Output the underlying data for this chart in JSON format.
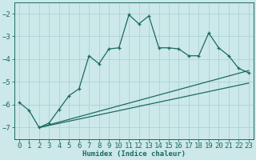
{
  "xlabel": "Humidex (Indice chaleur)",
  "background_color": "#cce8e8",
  "line_color": "#1a6b60",
  "xlim": [
    -0.5,
    23.5
  ],
  "ylim": [
    -7.5,
    -1.5
  ],
  "yticks": [
    -7,
    -6,
    -5,
    -4,
    -3,
    -2
  ],
  "xticks": [
    0,
    1,
    2,
    3,
    4,
    5,
    6,
    7,
    8,
    9,
    10,
    11,
    12,
    13,
    14,
    15,
    16,
    17,
    18,
    19,
    20,
    21,
    22,
    23
  ],
  "line1_x": [
    0,
    1,
    2,
    3,
    4,
    5,
    6,
    7,
    8,
    9,
    10,
    11,
    12,
    13,
    14,
    15,
    16,
    17,
    18,
    19,
    20,
    21,
    22,
    23
  ],
  "line1_y": [
    -5.9,
    -6.25,
    -7.0,
    -6.8,
    -6.2,
    -5.6,
    -5.3,
    -3.85,
    -4.2,
    -3.55,
    -3.5,
    -2.05,
    -2.45,
    -2.1,
    -3.5,
    -3.5,
    -3.55,
    -3.85,
    -3.85,
    -2.85,
    -3.5,
    -3.85,
    -4.4,
    -4.6
  ],
  "line2_x": [
    2,
    23
  ],
  "line2_y": [
    -7.0,
    -4.5
  ],
  "line3_x": [
    2,
    23
  ],
  "line3_y": [
    -7.0,
    -5.05
  ],
  "grid_color": "#aad4d4",
  "tick_fontsize": 6.5
}
